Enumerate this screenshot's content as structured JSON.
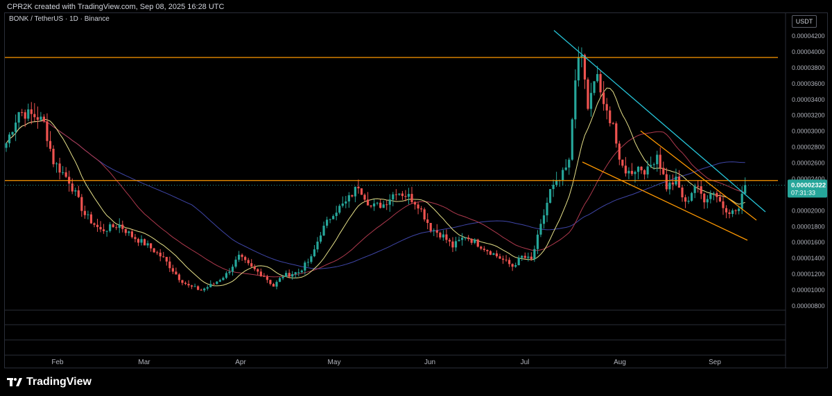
{
  "header": {
    "credit": "CPR2K created with TradingView.com, Sep 08, 2025 16:28 UTC"
  },
  "symbol": {
    "label": "BONK / TetherUS · 1D · Binance"
  },
  "currency_button": "USDT",
  "price_axis": {
    "ticks": [
      "0.00004200",
      "0.00004000",
      "0.00003800",
      "0.00003600",
      "0.00003400",
      "0.00003200",
      "0.00003000",
      "0.00002800",
      "0.00002600",
      "0.00002400",
      "0.00002200",
      "0.00002000",
      "0.00001800",
      "0.00001600",
      "0.00001400",
      "0.00001200",
      "0.00001000",
      "0.00000800"
    ],
    "current_price": "0.00002322",
    "countdown": "07:31:33",
    "current_price_color": "#26a69a"
  },
  "time_axis": {
    "ticks": [
      "Feb",
      "Mar",
      "Apr",
      "May",
      "Jun",
      "Jul",
      "Aug",
      "Sep"
    ]
  },
  "brand": {
    "name": "TradingView"
  },
  "colors": {
    "up": "#26a69a",
    "down": "#ef5350",
    "horizontal_levels": "#ff9800",
    "resistance_trendline": "#26c6da",
    "wedge_lines": "#ff9800",
    "ma_fast": "#e8e28a",
    "ma_mid": "#b03a4e",
    "ma_slow": "#3f46a8"
  },
  "chart_data": {
    "type": "candlestick",
    "symbol": "BONK / TetherUS",
    "interval": "1D",
    "exchange": "Binance",
    "y_scale": "linear",
    "ylim": [
      7.9e-06,
      4.32e-05
    ],
    "horizontal_levels": [
      3.93e-05,
      2.38e-05
    ],
    "approx_closes": [
      {
        "month": "Jan (late)",
        "close": 3.2e-05
      },
      {
        "month": "Feb",
        "close": 1.85e-05
      },
      {
        "month": "Mar",
        "close": 1.12e-05
      },
      {
        "month": "Apr",
        "close": 1.25e-05
      },
      {
        "month": "May",
        "close": 2.2e-05
      },
      {
        "month": "Jun",
        "close": 1.6e-05
      },
      {
        "month": "Jul (peak)",
        "close": 4.05e-05
      },
      {
        "month": "Aug",
        "close": 2.3e-05
      },
      {
        "month": "Sep",
        "close": 2.322e-05
      }
    ]
  }
}
